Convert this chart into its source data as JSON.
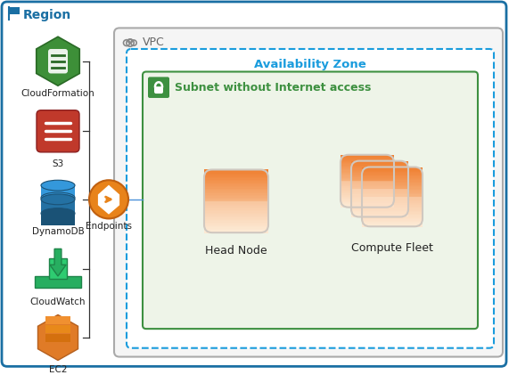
{
  "bg_color": "#ffffff",
  "region_border_color": "#1a6fa3",
  "region_label": "Region",
  "region_label_color": "#1a6fa3",
  "vpc_border_color": "#aaaaaa",
  "vpc_bg_color": "#f8f8f8",
  "vpc_label": "VPC",
  "az_border_color": "#1a9cdd",
  "az_bg_color": "#ffffff",
  "az_label": "Availability Zone",
  "az_label_color": "#1a9cdd",
  "subnet_border_color": "#3d9040",
  "subnet_bg_color": "#eef4e8",
  "subnet_label": "Subnet without Internet access",
  "subnet_label_color": "#3d9040",
  "endpoints_color_outer": "#e8831a",
  "endpoints_color_inner": "#e8831a",
  "endpoints_label": "Endpoints",
  "head_node_label": "Head Node",
  "compute_fleet_label": "Compute Fleet",
  "line_color": "#333333",
  "connect_line_color": "#4a90d9"
}
